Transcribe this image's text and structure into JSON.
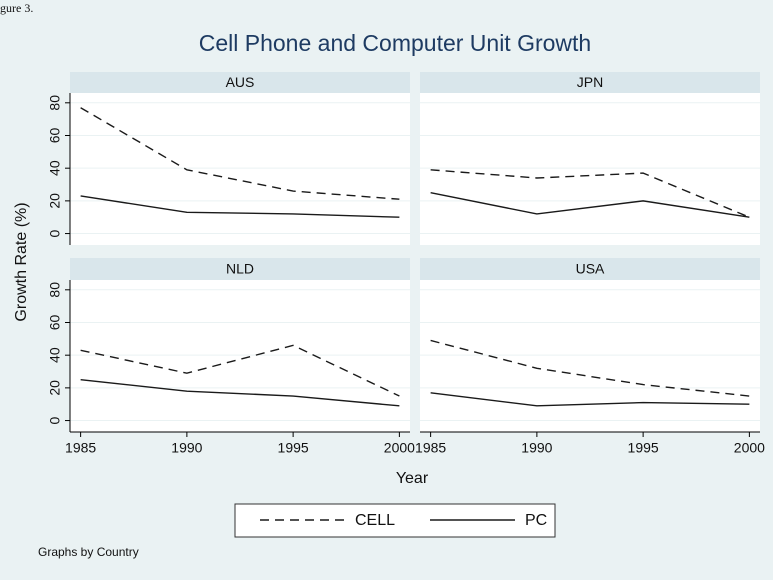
{
  "caption": "gure 3.",
  "title": "Cell Phone and Computer Unit Growth",
  "y_label": "Growth Rate (%)",
  "x_label": "Year",
  "note": "Graphs by Country",
  "chart_data": [
    {
      "type": "line",
      "title": "AUS",
      "x": [
        1985,
        1990,
        1995,
        2000
      ],
      "xlim": [
        1984.5,
        2000.5
      ],
      "xticks": [
        1985,
        1990,
        1995,
        2000
      ],
      "ylim": [
        -7,
        86
      ],
      "yticks": [
        0,
        20,
        40,
        60,
        80
      ],
      "grid": true,
      "series": [
        {
          "name": "CELL",
          "color": "#1a1a1a",
          "dash": "dashed",
          "values": [
            77,
            39,
            26,
            21
          ]
        },
        {
          "name": "PC",
          "color": "#1a1a1a",
          "dash": "solid",
          "values": [
            23,
            13,
            12,
            10
          ]
        }
      ]
    },
    {
      "type": "line",
      "title": "JPN",
      "x": [
        1985,
        1990,
        1995,
        2000
      ],
      "xlim": [
        1984.5,
        2000.5
      ],
      "xticks": [
        1985,
        1990,
        1995,
        2000
      ],
      "ylim": [
        -7,
        86
      ],
      "yticks": [
        0,
        20,
        40,
        60,
        80
      ],
      "grid": true,
      "series": [
        {
          "name": "CELL",
          "color": "#1a1a1a",
          "dash": "dashed",
          "values": [
            39,
            34,
            37,
            10
          ]
        },
        {
          "name": "PC",
          "color": "#1a1a1a",
          "dash": "solid",
          "values": [
            25,
            12,
            20,
            10
          ]
        }
      ]
    },
    {
      "type": "line",
      "title": "NLD",
      "x": [
        1985,
        1990,
        1995,
        2000
      ],
      "xlim": [
        1984.5,
        2000.5
      ],
      "xticks": [
        1985,
        1990,
        1995,
        2000
      ],
      "ylim": [
        -7,
        86
      ],
      "yticks": [
        0,
        20,
        40,
        60,
        80
      ],
      "grid": true,
      "series": [
        {
          "name": "CELL",
          "color": "#1a1a1a",
          "dash": "dashed",
          "values": [
            43,
            29,
            46,
            15
          ]
        },
        {
          "name": "PC",
          "color": "#1a1a1a",
          "dash": "solid",
          "values": [
            25,
            18,
            15,
            9
          ]
        }
      ]
    },
    {
      "type": "line",
      "title": "USA",
      "x": [
        1985,
        1990,
        1995,
        2000
      ],
      "xlim": [
        1984.5,
        2000.5
      ],
      "xticks": [
        1985,
        1990,
        1995,
        2000
      ],
      "ylim": [
        -7,
        86
      ],
      "yticks": [
        0,
        20,
        40,
        60,
        80
      ],
      "grid": true,
      "series": [
        {
          "name": "CELL",
          "color": "#1a1a1a",
          "dash": "dashed",
          "values": [
            49,
            32,
            22,
            15
          ]
        },
        {
          "name": "PC",
          "color": "#1a1a1a",
          "dash": "solid",
          "values": [
            17,
            9,
            11,
            10
          ]
        }
      ]
    }
  ]
}
